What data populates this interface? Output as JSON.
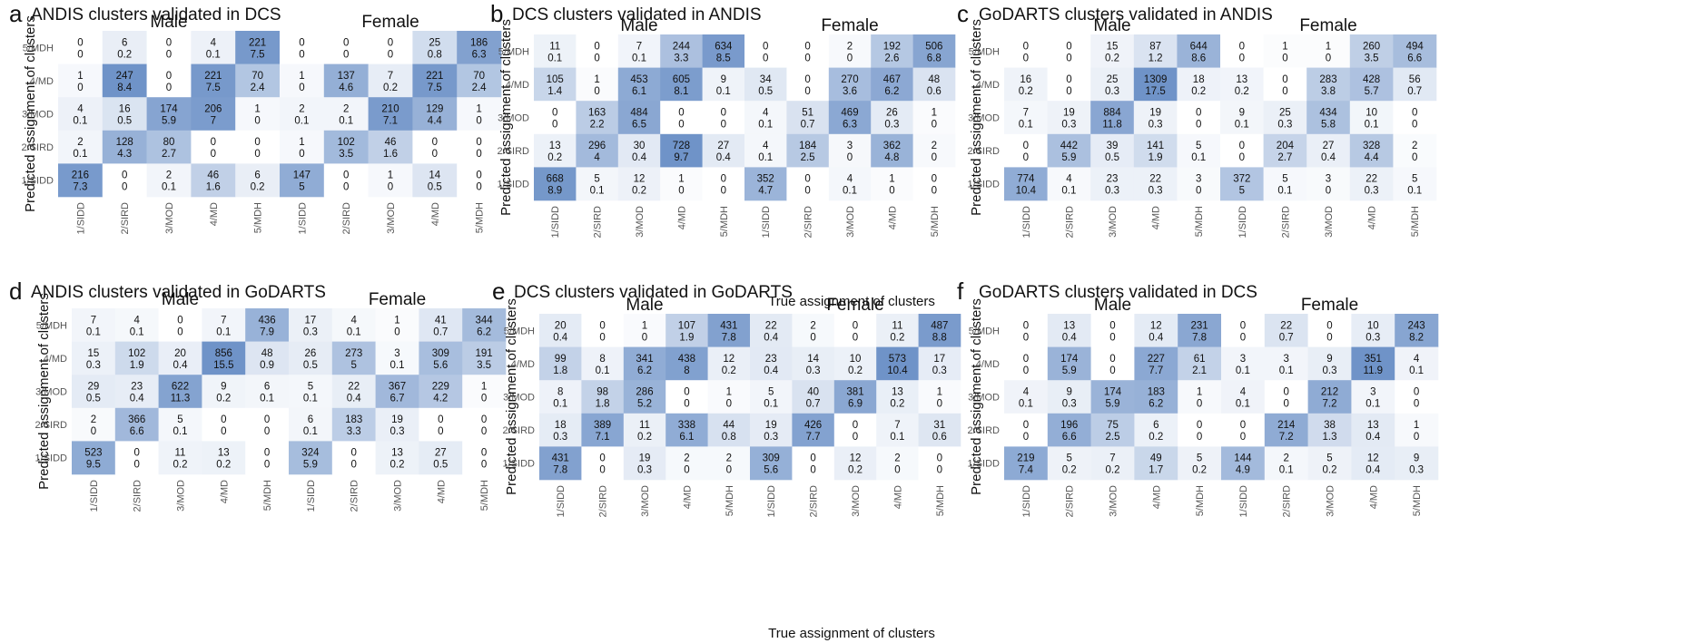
{
  "row_labels": [
    "5/MDH",
    "4/MD",
    "3/MOD",
    "2/SIRD",
    "1/SIDD"
  ],
  "col_labels": [
    "1/SIDD",
    "2/SIRD",
    "3/MOD",
    "4/MD",
    "5/MDH"
  ],
  "group_labels": [
    "Male",
    "Female"
  ],
  "y_axis_label": "Predicted assignment of clusters",
  "x_axis_label": "True assignment of clusters",
  "colors": {
    "low": "#ffffff",
    "high": "#6f93c8",
    "text": "#111111"
  },
  "chart_data": [
    {
      "type": "heatmap",
      "letter": "a",
      "title": "ANDIS clusters validated in DCS",
      "ylabel": "Predicted assignment of clusters",
      "groups": [
        {
          "name": "Male",
          "counts": [
            [
              0,
              6,
              0,
              4,
              221
            ],
            [
              1,
              247,
              0,
              221,
              70
            ],
            [
              4,
              16,
              174,
              206,
              1
            ],
            [
              2,
              128,
              80,
              0,
              0
            ],
            [
              216,
              0,
              2,
              46,
              6
            ]
          ],
          "percents": [
            [
              "0",
              "0.2",
              "0",
              "0.1",
              "7.5"
            ],
            [
              "0",
              "8.4",
              "0",
              "7.5",
              "2.4"
            ],
            [
              "0.1",
              "0.5",
              "5.9",
              "7",
              "0"
            ],
            [
              "0.1",
              "4.3",
              "2.7",
              "0",
              "0"
            ],
            [
              "7.3",
              "0",
              "0.1",
              "1.6",
              "0.2"
            ]
          ]
        },
        {
          "name": "Female",
          "counts": [
            [
              0,
              0,
              0,
              25,
              186
            ],
            [
              1,
              137,
              7,
              221,
              70
            ],
            [
              2,
              2,
              210,
              129,
              1
            ],
            [
              1,
              102,
              46,
              0,
              0
            ],
            [
              147,
              0,
              1,
              14,
              0
            ]
          ],
          "percents": [
            [
              "0",
              "0",
              "0",
              "0.8",
              "6.3"
            ],
            [
              "0",
              "4.6",
              "0.2",
              "7.5",
              "2.4"
            ],
            [
              "0.1",
              "0.1",
              "7.1",
              "4.4",
              "0"
            ],
            [
              "0",
              "3.5",
              "1.6",
              "0",
              "0"
            ],
            [
              "5",
              "0",
              "0",
              "0.5",
              "0"
            ]
          ]
        }
      ]
    },
    {
      "type": "heatmap",
      "letter": "b",
      "title": "DCS clusters validated in ANDIS",
      "ylabel": "Predicted assignment of clusters",
      "groups": [
        {
          "name": "Male",
          "counts": [
            [
              11,
              0,
              7,
              244,
              634
            ],
            [
              105,
              1,
              453,
              605,
              9
            ],
            [
              0,
              163,
              484,
              0,
              0
            ],
            [
              13,
              296,
              30,
              728,
              27
            ],
            [
              668,
              5,
              12,
              1,
              0
            ]
          ],
          "percents": [
            [
              "0.1",
              "0",
              "0.1",
              "3.3",
              "8.5"
            ],
            [
              "1.4",
              "0",
              "6.1",
              "8.1",
              "0.1"
            ],
            [
              "0",
              "2.2",
              "6.5",
              "0",
              "0"
            ],
            [
              "0.2",
              "4",
              "0.4",
              "9.7",
              "0.4"
            ],
            [
              "8.9",
              "0.1",
              "0.2",
              "0",
              "0"
            ]
          ]
        },
        {
          "name": "Female",
          "counts": [
            [
              0,
              0,
              2,
              192,
              506
            ],
            [
              34,
              0,
              270,
              467,
              48
            ],
            [
              4,
              51,
              469,
              26,
              1
            ],
            [
              4,
              184,
              3,
              362,
              2
            ],
            [
              352,
              0,
              4,
              1,
              0
            ]
          ],
          "percents": [
            [
              "0",
              "0",
              "0",
              "2.6",
              "6.8"
            ],
            [
              "0.5",
              "0",
              "3.6",
              "6.2",
              "0.6"
            ],
            [
              "0.1",
              "0.7",
              "6.3",
              "0.3",
              "0"
            ],
            [
              "0.1",
              "2.5",
              "0",
              "4.8",
              "0"
            ],
            [
              "4.7",
              "0",
              "0.1",
              "0",
              "0"
            ]
          ]
        }
      ]
    },
    {
      "type": "heatmap",
      "letter": "c",
      "title": "GoDARTS clusters validated in ANDIS",
      "ylabel": "Predicted assignment of clusters",
      "groups": [
        {
          "name": "Male",
          "counts": [
            [
              0,
              0,
              15,
              87,
              644
            ],
            [
              16,
              0,
              25,
              1309,
              18
            ],
            [
              7,
              19,
              884,
              19,
              0
            ],
            [
              0,
              442,
              39,
              141,
              5
            ],
            [
              774,
              4,
              23,
              22,
              3
            ]
          ],
          "percents": [
            [
              "0",
              "0",
              "0.2",
              "1.2",
              "8.6"
            ],
            [
              "0.2",
              "0",
              "0.3",
              "17.5",
              "0.2"
            ],
            [
              "0.1",
              "0.3",
              "11.8",
              "0.3",
              "0"
            ],
            [
              "0",
              "5.9",
              "0.5",
              "1.9",
              "0.1"
            ],
            [
              "10.4",
              "0.1",
              "0.3",
              "0.3",
              "0"
            ]
          ]
        },
        {
          "name": "Female",
          "counts": [
            [
              0,
              1,
              1,
              260,
              494
            ],
            [
              13,
              0,
              283,
              428,
              56
            ],
            [
              9,
              25,
              434,
              10,
              0
            ],
            [
              0,
              204,
              27,
              328,
              2
            ],
            [
              372,
              5,
              3,
              22,
              5
            ]
          ],
          "percents": [
            [
              "0",
              "0",
              "0",
              "3.5",
              "6.6"
            ],
            [
              "0.2",
              "0",
              "3.8",
              "5.7",
              "0.7"
            ],
            [
              "0.1",
              "0.3",
              "5.8",
              "0.1",
              "0"
            ],
            [
              "0",
              "2.7",
              "0.4",
              "4.4",
              "0"
            ],
            [
              "5",
              "0.1",
              "0",
              "0.3",
              "0.1"
            ]
          ]
        }
      ]
    },
    {
      "type": "heatmap",
      "letter": "d",
      "title": "ANDIS clusters validated in GoDARTS",
      "ylabel": "Predicted assignment of clusters",
      "groups": [
        {
          "name": "Male",
          "counts": [
            [
              7,
              4,
              0,
              7,
              436
            ],
            [
              15,
              102,
              20,
              856,
              48
            ],
            [
              29,
              23,
              622,
              9,
              6
            ],
            [
              2,
              366,
              5,
              0,
              0
            ],
            [
              523,
              0,
              11,
              13,
              0
            ]
          ],
          "percents": [
            [
              "0.1",
              "0.1",
              "0",
              "0.1",
              "7.9"
            ],
            [
              "0.3",
              "1.9",
              "0.4",
              "15.5",
              "0.9"
            ],
            [
              "0.5",
              "0.4",
              "11.3",
              "0.2",
              "0.1"
            ],
            [
              "0",
              "6.6",
              "0.1",
              "0",
              "0"
            ],
            [
              "9.5",
              "0",
              "0.2",
              "0.2",
              "0"
            ]
          ]
        },
        {
          "name": "Female",
          "counts": [
            [
              17,
              4,
              1,
              41,
              344
            ],
            [
              26,
              273,
              3,
              309,
              191
            ],
            [
              5,
              22,
              367,
              229,
              1
            ],
            [
              6,
              183,
              19,
              0,
              0
            ],
            [
              324,
              0,
              13,
              27,
              0
            ]
          ],
          "percents": [
            [
              "0.3",
              "0.1",
              "0",
              "0.7",
              "6.2"
            ],
            [
              "0.5",
              "5",
              "0.1",
              "5.6",
              "3.5"
            ],
            [
              "0.1",
              "0.4",
              "6.7",
              "4.2",
              "0"
            ],
            [
              "0.1",
              "3.3",
              "0.3",
              "0",
              "0"
            ],
            [
              "5.9",
              "0",
              "0.2",
              "0.5",
              "0"
            ]
          ]
        }
      ]
    },
    {
      "type": "heatmap",
      "letter": "e",
      "title": "DCS clusters validated in GoDARTS",
      "ylabel": "Predicted assignment of clusters",
      "groups": [
        {
          "name": "Male",
          "counts": [
            [
              20,
              0,
              1,
              107,
              431
            ],
            [
              99,
              8,
              341,
              438,
              12
            ],
            [
              8,
              98,
              286,
              0,
              1
            ],
            [
              18,
              389,
              11,
              338,
              44
            ],
            [
              431,
              0,
              19,
              2,
              2
            ]
          ],
          "percents": [
            [
              "0.4",
              "0",
              "0",
              "1.9",
              "7.8"
            ],
            [
              "1.8",
              "0.1",
              "6.2",
              "8",
              "0.2"
            ],
            [
              "0.1",
              "1.8",
              "5.2",
              "0",
              "0"
            ],
            [
              "0.3",
              "7.1",
              "0.2",
              "6.1",
              "0.8"
            ],
            [
              "7.8",
              "0",
              "0.3",
              "0",
              "0"
            ]
          ]
        },
        {
          "name": "Female",
          "counts": [
            [
              22,
              2,
              0,
              11,
              487
            ],
            [
              23,
              14,
              10,
              573,
              17
            ],
            [
              5,
              40,
              381,
              13,
              1
            ],
            [
              19,
              426,
              0,
              7,
              31
            ],
            [
              309,
              0,
              12,
              2,
              0
            ]
          ],
          "percents": [
            [
              "0.4",
              "0",
              "0",
              "0.2",
              "8.8"
            ],
            [
              "0.4",
              "0.3",
              "0.2",
              "10.4",
              "0.3"
            ],
            [
              "0.1",
              "0.7",
              "6.9",
              "0.2",
              "0"
            ],
            [
              "0.3",
              "7.7",
              "0",
              "0.1",
              "0.6"
            ],
            [
              "5.6",
              "0",
              "0.2",
              "0",
              "0"
            ]
          ]
        }
      ]
    },
    {
      "type": "heatmap",
      "letter": "f",
      "title": "GoDARTS clusters validated in DCS",
      "ylabel": "Predicted assignment of clusters",
      "groups": [
        {
          "name": "Male",
          "counts": [
            [
              0,
              13,
              0,
              12,
              231
            ],
            [
              0,
              174,
              0,
              227,
              61
            ],
            [
              4,
              9,
              174,
              183,
              1
            ],
            [
              0,
              196,
              75,
              6,
              0
            ],
            [
              219,
              5,
              7,
              49,
              5
            ]
          ],
          "percents": [
            [
              "0",
              "0.4",
              "0",
              "0.4",
              "7.8"
            ],
            [
              "0",
              "5.9",
              "0",
              "7.7",
              "2.1"
            ],
            [
              "0.1",
              "0.3",
              "5.9",
              "6.2",
              "0"
            ],
            [
              "0",
              "6.6",
              "2.5",
              "0.2",
              "0"
            ],
            [
              "7.4",
              "0.2",
              "0.2",
              "1.7",
              "0.2"
            ]
          ]
        },
        {
          "name": "Female",
          "counts": [
            [
              0,
              22,
              0,
              10,
              243
            ],
            [
              3,
              3,
              9,
              351,
              4
            ],
            [
              4,
              0,
              212,
              3,
              0
            ],
            [
              0,
              214,
              38,
              13,
              1
            ],
            [
              144,
              2,
              5,
              12,
              9
            ]
          ],
          "percents": [
            [
              "0",
              "0.7",
              "0",
              "0.3",
              "8.2"
            ],
            [
              "0.1",
              "0.1",
              "0.3",
              "11.9",
              "0.1"
            ],
            [
              "0.1",
              "0",
              "7.2",
              "0.1",
              "0"
            ],
            [
              "0",
              "7.2",
              "1.3",
              "0.4",
              "0"
            ],
            [
              "4.9",
              "0.1",
              "0.2",
              "0.4",
              "0.3"
            ]
          ]
        }
      ]
    }
  ]
}
